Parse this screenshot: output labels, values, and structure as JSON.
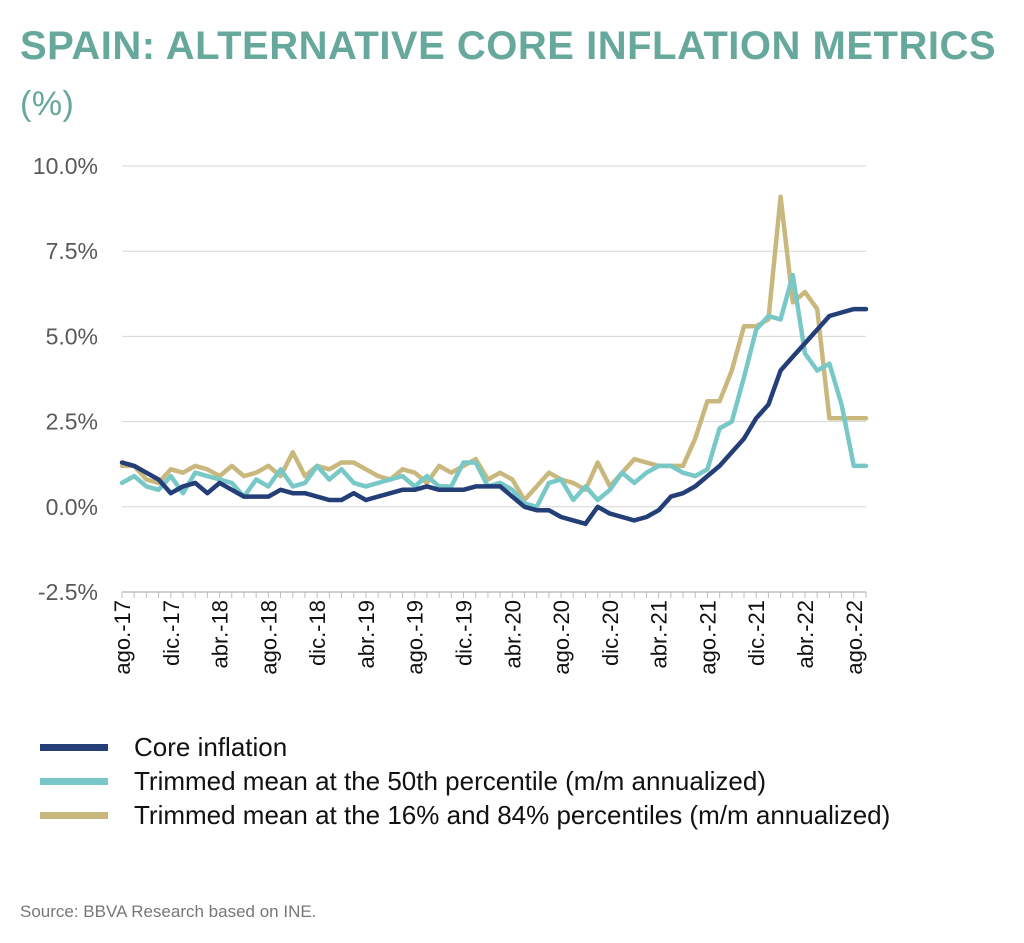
{
  "title": {
    "main": "SPAIN: ALTERNATIVE CORE INFLATION METRICS",
    "unit": "(%)"
  },
  "source": "Source: BBVA Research based on INE.",
  "colors": {
    "core": "#243f78",
    "trimmed50": "#79c8c8",
    "trimmed16_84": "#c9b87d",
    "title": "#66a89c"
  },
  "chart_data": {
    "type": "line",
    "title": "SPAIN: ALTERNATIVE CORE INFLATION METRICS (%)",
    "xlabel": "",
    "ylabel": "",
    "ylim": [
      -2.5,
      10.0
    ],
    "yticks": [
      -2.5,
      0.0,
      2.5,
      5.0,
      7.5,
      10.0
    ],
    "ytick_labels": [
      "-2.5%",
      "0.0%",
      "2.5%",
      "5.0%",
      "7.5%",
      "10.0%"
    ],
    "x": [
      "2017-08",
      "2017-09",
      "2017-10",
      "2017-11",
      "2017-12",
      "2018-01",
      "2018-02",
      "2018-03",
      "2018-04",
      "2018-05",
      "2018-06",
      "2018-07",
      "2018-08",
      "2018-09",
      "2018-10",
      "2018-11",
      "2018-12",
      "2019-01",
      "2019-02",
      "2019-03",
      "2019-04",
      "2019-05",
      "2019-06",
      "2019-07",
      "2019-08",
      "2019-09",
      "2019-10",
      "2019-11",
      "2019-12",
      "2020-01",
      "2020-02",
      "2020-03",
      "2020-04",
      "2020-05",
      "2020-06",
      "2020-07",
      "2020-08",
      "2020-09",
      "2020-10",
      "2020-11",
      "2020-12",
      "2021-01",
      "2021-02",
      "2021-03",
      "2021-04",
      "2021-05",
      "2021-06",
      "2021-07",
      "2021-08",
      "2021-09",
      "2021-10",
      "2021-11",
      "2021-12",
      "2022-01",
      "2022-02",
      "2022-03",
      "2022-04",
      "2022-05",
      "2022-06",
      "2022-07",
      "2022-08",
      "2022-09"
    ],
    "xtick_labels": [
      {
        "x": "2017-08",
        "label": "ago.-17"
      },
      {
        "x": "2017-12",
        "label": "dic.-17"
      },
      {
        "x": "2018-04",
        "label": "abr.-18"
      },
      {
        "x": "2018-08",
        "label": "ago.-18"
      },
      {
        "x": "2018-12",
        "label": "dic.-18"
      },
      {
        "x": "2019-04",
        "label": "abr.-19"
      },
      {
        "x": "2019-08",
        "label": "ago.-19"
      },
      {
        "x": "2019-12",
        "label": "dic.-19"
      },
      {
        "x": "2020-04",
        "label": "abr.-20"
      },
      {
        "x": "2020-08",
        "label": "ago.-20"
      },
      {
        "x": "2020-12",
        "label": "dic.-20"
      },
      {
        "x": "2021-04",
        "label": "abr.-21"
      },
      {
        "x": "2021-08",
        "label": "ago.-21"
      },
      {
        "x": "2021-12",
        "label": "dic.-21"
      },
      {
        "x": "2022-04",
        "label": "abr.-22"
      },
      {
        "x": "2022-08",
        "label": "ago.-22"
      }
    ],
    "grid": true,
    "legend_position": "bottom",
    "series": [
      {
        "name": "Core inflation",
        "color": "#243f78",
        "values": [
          1.3,
          1.2,
          1.0,
          0.8,
          0.4,
          0.6,
          0.7,
          0.4,
          0.7,
          0.5,
          0.3,
          0.3,
          0.3,
          0.5,
          0.4,
          0.4,
          0.3,
          0.2,
          0.2,
          0.4,
          0.2,
          0.3,
          0.4,
          0.5,
          0.5,
          0.6,
          0.5,
          0.5,
          0.5,
          0.6,
          0.6,
          0.6,
          0.3,
          0.0,
          -0.1,
          -0.1,
          -0.3,
          -0.4,
          -0.5,
          0.0,
          -0.2,
          -0.3,
          -0.4,
          -0.3,
          -0.1,
          0.3,
          0.4,
          0.6,
          0.9,
          1.2,
          1.6,
          2.0,
          2.6,
          3.0,
          4.0,
          4.4,
          4.8,
          5.2,
          5.6,
          5.7,
          5.8,
          5.8
        ]
      },
      {
        "name": "Trimmed mean at the 50th percentile (m/m annualized)",
        "color": "#79c8c8",
        "values": [
          0.7,
          0.9,
          0.6,
          0.5,
          0.9,
          0.4,
          1.0,
          0.9,
          0.8,
          0.7,
          0.3,
          0.8,
          0.6,
          1.1,
          0.6,
          0.7,
          1.2,
          0.8,
          1.1,
          0.7,
          0.6,
          0.7,
          0.8,
          0.9,
          0.6,
          0.9,
          0.6,
          0.6,
          1.3,
          1.3,
          0.6,
          0.7,
          0.5,
          0.1,
          0.0,
          0.7,
          0.8,
          0.2,
          0.6,
          0.2,
          0.5,
          1.0,
          0.7,
          1.0,
          1.2,
          1.2,
          1.0,
          0.9,
          1.1,
          2.3,
          2.5,
          3.8,
          5.2,
          5.6,
          5.5,
          6.8,
          4.5,
          4.0,
          4.2,
          3.0,
          1.2,
          1.2
        ]
      },
      {
        "name": "Trimmed mean at the 16% and 84% percentiles (m/m annualized)",
        "color": "#c9b87d",
        "values": [
          1.2,
          1.2,
          0.8,
          0.7,
          1.1,
          1.0,
          1.2,
          1.1,
          0.9,
          1.2,
          0.9,
          1.0,
          1.2,
          0.9,
          1.6,
          0.9,
          1.2,
          1.1,
          1.3,
          1.3,
          1.1,
          0.9,
          0.8,
          1.1,
          1.0,
          0.7,
          1.2,
          1.0,
          1.2,
          1.4,
          0.8,
          1.0,
          0.8,
          0.2,
          0.6,
          1.0,
          0.8,
          0.7,
          0.5,
          1.3,
          0.6,
          1.0,
          1.4,
          1.3,
          1.2,
          1.2,
          1.2,
          2.0,
          3.1,
          3.1,
          4.0,
          5.3,
          5.3,
          5.5,
          9.1,
          6.0,
          6.3,
          5.8,
          2.6,
          2.6,
          2.6,
          2.6
        ]
      }
    ]
  },
  "legend": [
    {
      "label": "Core inflation",
      "color": "#243f78"
    },
    {
      "label": "Trimmed mean at the 50th percentile (m/m annualized)",
      "color": "#79c8c8"
    },
    {
      "label": "Trimmed mean at the 16% and 84% percentiles (m/m annualized)",
      "color": "#c9b87d"
    }
  ]
}
